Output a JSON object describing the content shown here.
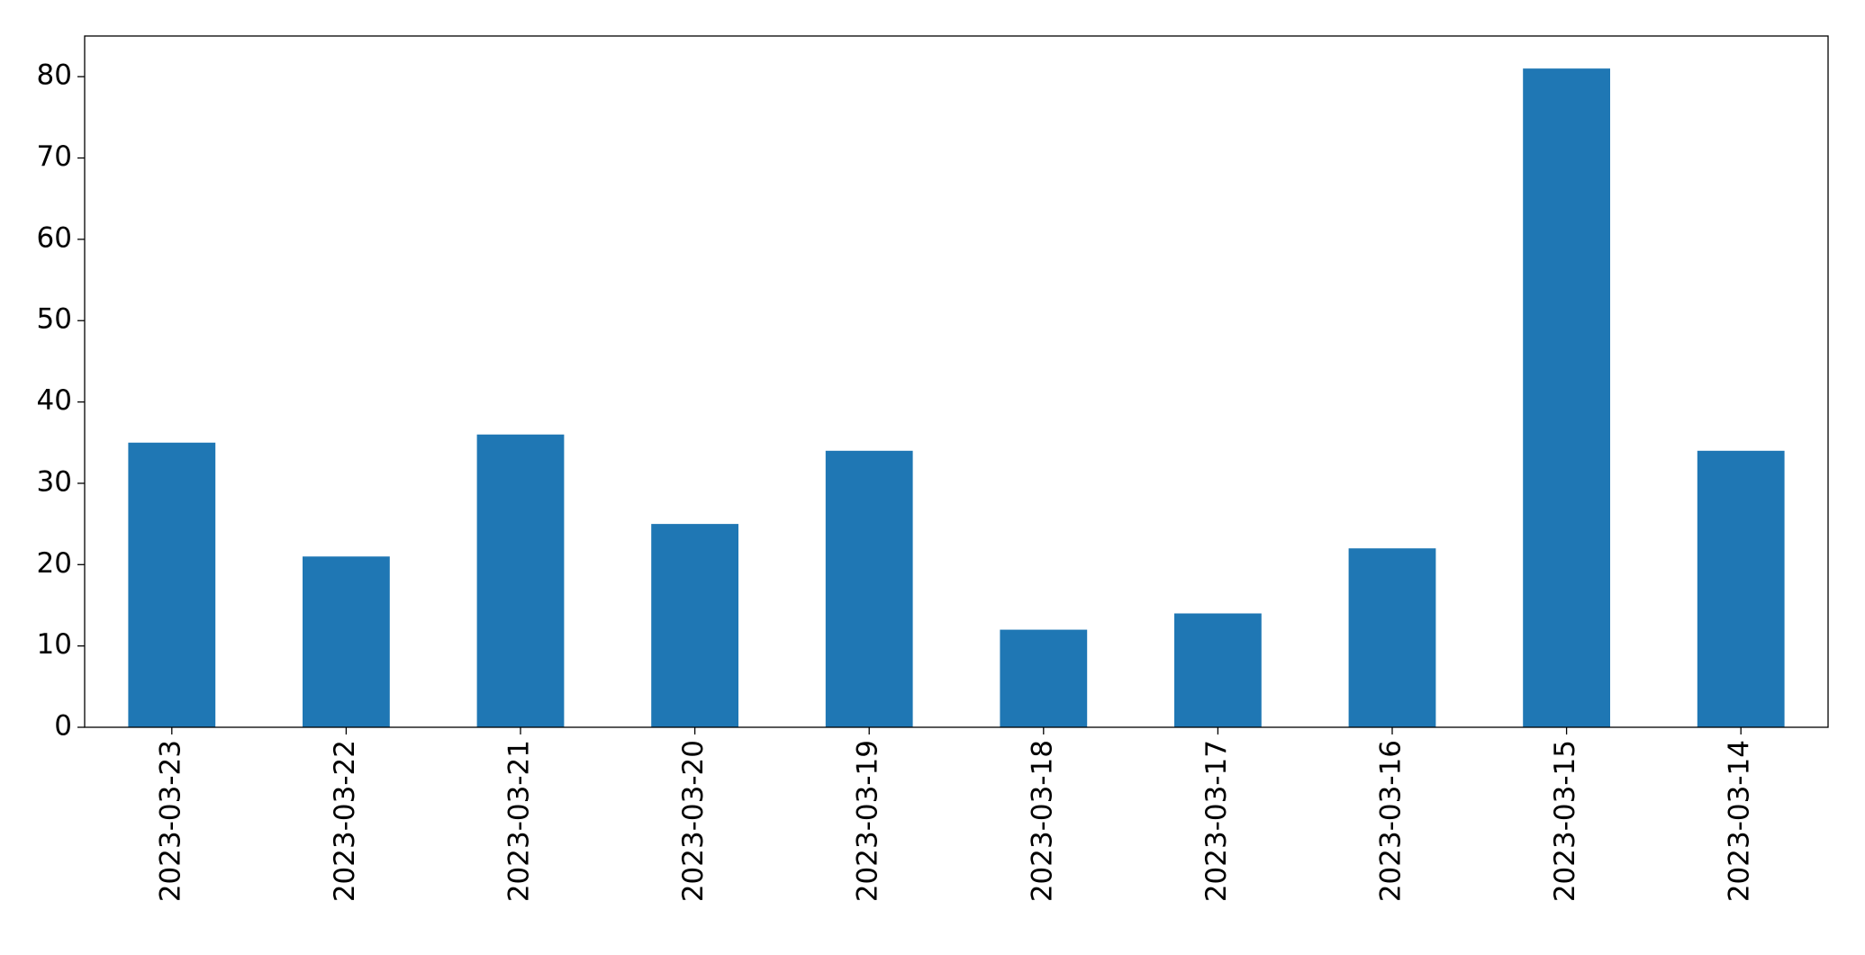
{
  "chart_data": {
    "type": "bar",
    "categories": [
      "2023-03-23",
      "2023-03-22",
      "2023-03-21",
      "2023-03-20",
      "2023-03-19",
      "2023-03-18",
      "2023-03-17",
      "2023-03-16",
      "2023-03-15",
      "2023-03-14"
    ],
    "values": [
      35,
      21,
      36,
      25,
      34,
      12,
      14,
      22,
      81,
      34
    ],
    "color": "#1f77b4",
    "ylim": [
      0,
      85
    ],
    "yticks": [
      0,
      10,
      20,
      30,
      40,
      50,
      60,
      70,
      80
    ],
    "grid": false
  }
}
